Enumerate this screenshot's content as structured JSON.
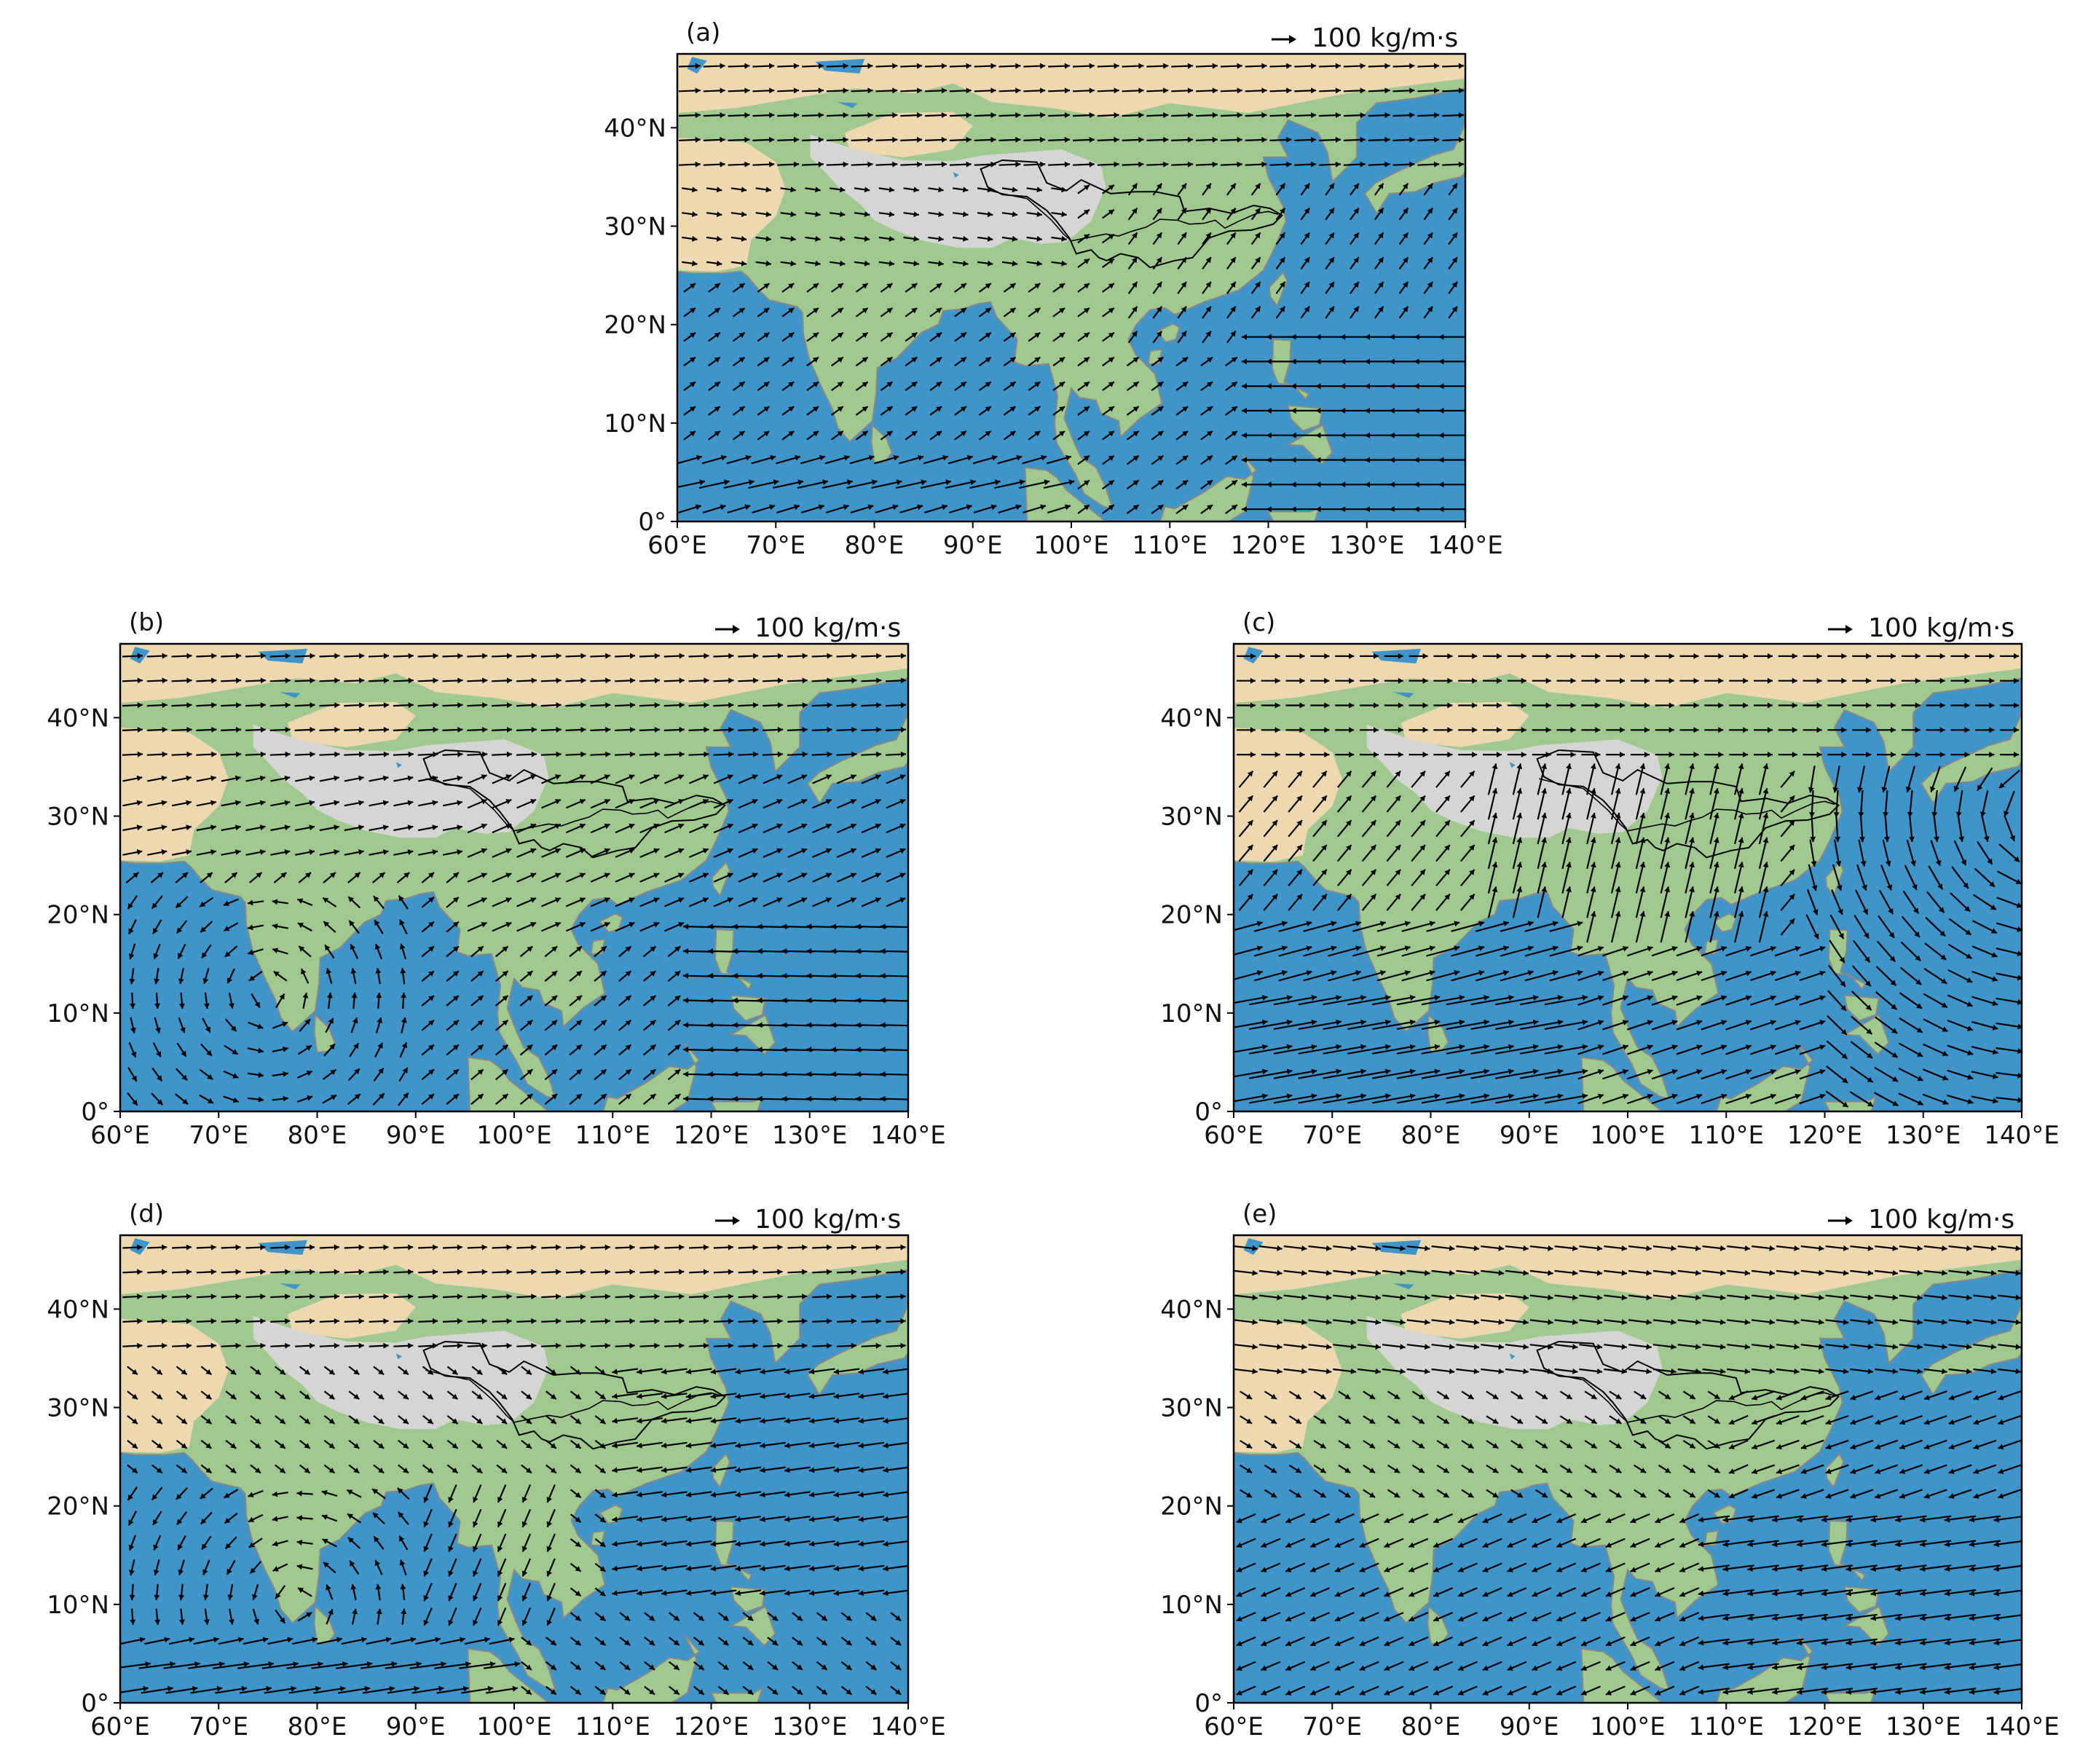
{
  "figure": {
    "quiver_reference": {
      "label": "100 kg/m·s",
      "magnitude": 100
    },
    "colors": {
      "ocean": "#3f95c9",
      "ocean_dark": "#2f7fb4",
      "lowland": "#9fc98e",
      "desert": "#eed8b0",
      "plateau": "#d5d6d3",
      "coast": "#888888",
      "arrow": "#000000"
    },
    "panels": [
      {
        "id": "a",
        "label": "(a)",
        "pattern": "annual"
      },
      {
        "id": "b",
        "label": "(b)",
        "pattern": "spring"
      },
      {
        "id": "c",
        "label": "(c)",
        "pattern": "summer"
      },
      {
        "id": "d",
        "label": "(d)",
        "pattern": "autumn"
      },
      {
        "id": "e",
        "label": "(e)",
        "pattern": "winter"
      }
    ],
    "x_ticks": [
      "60°E",
      "70°E",
      "80°E",
      "90°E",
      "100°E",
      "110°E",
      "120°E",
      "130°E",
      "140°E"
    ],
    "y_ticks": [
      "0°",
      "10°N",
      "20°N",
      "30°N",
      "40°N"
    ],
    "x_range": [
      60,
      140
    ],
    "y_range": [
      0,
      47.5
    ],
    "x_tick_values": [
      60,
      70,
      80,
      90,
      100,
      110,
      120,
      130,
      140
    ],
    "y_tick_values": [
      0,
      10,
      20,
      30,
      40
    ]
  }
}
